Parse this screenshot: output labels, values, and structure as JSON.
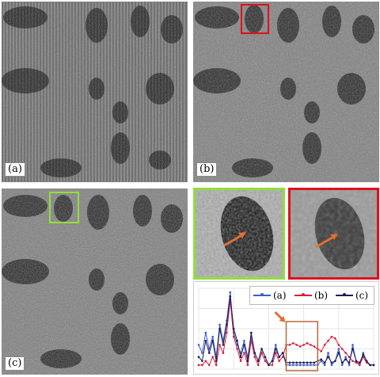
{
  "panels": [
    {
      "id": "a",
      "label": "(a)"
    },
    {
      "id": "b",
      "label": "(b)"
    },
    {
      "id": "c",
      "label": "(c)"
    }
  ],
  "colors": {
    "highlight_red": "#e0101a",
    "highlight_green": "#8fe03a",
    "arrow_orange": "#e07030",
    "interval_box": "#b86a3a"
  },
  "chart_data": {
    "type": "line",
    "title": "",
    "xlabel": "",
    "ylabel": "",
    "legend_position": "top-right",
    "grid": true,
    "highlight_interval": [
      25,
      34
    ],
    "x": [
      0,
      1,
      2,
      3,
      4,
      5,
      6,
      7,
      8,
      9,
      10,
      11,
      12,
      13,
      14,
      15,
      16,
      17,
      18,
      19,
      20,
      21,
      22,
      23,
      24,
      25,
      26,
      27,
      28,
      29,
      30,
      31,
      32,
      33,
      34,
      35,
      36,
      37,
      38,
      39,
      40,
      41,
      42,
      43,
      44,
      45,
      46,
      47,
      48,
      49,
      50
    ],
    "ylim": [
      0,
      1
    ],
    "series": [
      {
        "name": "(a)",
        "color": "#3a5ec8",
        "values": [
          0.3,
          0.2,
          0.45,
          0.25,
          0.4,
          0.15,
          0.55,
          0.35,
          0.6,
          0.95,
          0.45,
          0.3,
          0.2,
          0.35,
          0.15,
          0.4,
          0.2,
          0.1,
          0.25,
          0.15,
          0.05,
          0.1,
          0.3,
          0.15,
          0.2,
          0.05,
          0.05,
          0.05,
          0.05,
          0.05,
          0.05,
          0.05,
          0.05,
          0.05,
          0.05,
          0.1,
          0.05,
          0.2,
          0.05,
          0.1,
          0.25,
          0.05,
          0.15,
          0.05,
          0.3,
          0.1,
          0.05,
          0.2,
          0.1,
          0.05,
          0.05
        ]
      },
      {
        "name": "(b)",
        "color": "#d81e3a",
        "values": [
          0.05,
          0.05,
          0.1,
          0.05,
          0.15,
          0.05,
          0.3,
          0.2,
          0.45,
          0.85,
          0.4,
          0.25,
          0.1,
          0.2,
          0.05,
          0.35,
          0.15,
          0.05,
          0.2,
          0.1,
          0.05,
          0.05,
          0.2,
          0.1,
          0.15,
          0.3,
          0.3,
          0.32,
          0.3,
          0.28,
          0.3,
          0.32,
          0.3,
          0.28,
          0.25,
          0.22,
          0.3,
          0.35,
          0.4,
          0.38,
          0.3,
          0.25,
          0.2,
          0.15,
          0.1,
          0.08,
          0.05,
          0.15,
          0.08,
          0.05,
          0.05
        ]
      },
      {
        "name": "(c)",
        "color": "#1c1c5a",
        "values": [
          0.15,
          0.1,
          0.35,
          0.2,
          0.35,
          0.1,
          0.5,
          0.3,
          0.55,
          0.9,
          0.5,
          0.35,
          0.15,
          0.3,
          0.1,
          0.45,
          0.2,
          0.1,
          0.25,
          0.15,
          0.05,
          0.1,
          0.25,
          0.15,
          0.2,
          0.08,
          0.08,
          0.08,
          0.08,
          0.08,
          0.08,
          0.08,
          0.08,
          0.08,
          0.1,
          0.12,
          0.08,
          0.15,
          0.08,
          0.1,
          0.2,
          0.08,
          0.12,
          0.08,
          0.25,
          0.1,
          0.08,
          0.18,
          0.1,
          0.05,
          0.05
        ]
      }
    ]
  }
}
